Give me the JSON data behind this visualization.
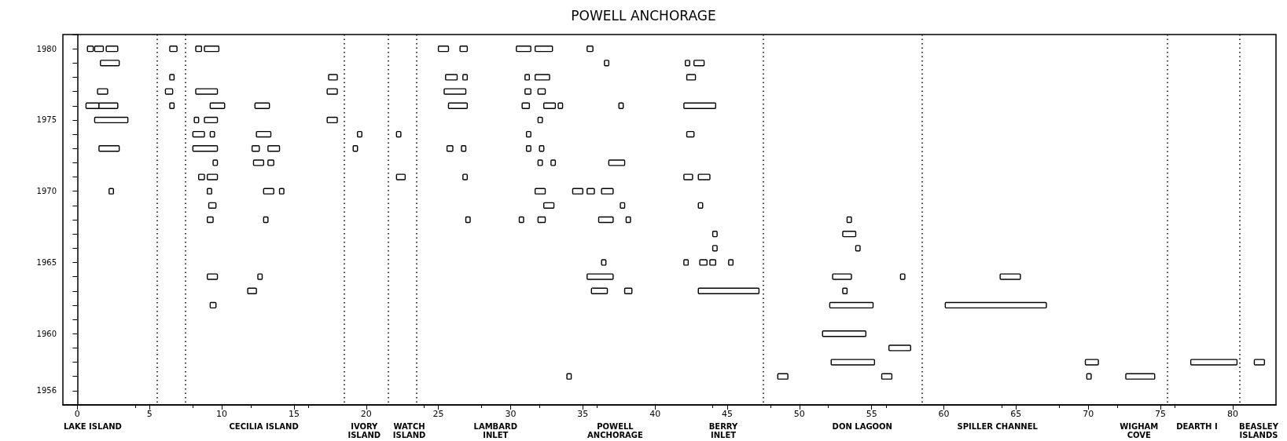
{
  "chart_data": {
    "type": "bar",
    "orientation": "horizontal",
    "title": "POWELL ANCHORAGE",
    "categories": [
      null,
      "1980",
      null,
      null,
      null,
      null,
      "1975",
      null,
      null,
      null,
      null,
      "1970",
      null,
      null,
      null,
      null,
      "1965",
      null,
      null,
      null,
      null,
      "1960",
      null,
      null,
      null,
      "1956",
      null
    ],
    "xlim": [
      -1,
      83
    ],
    "xticks": [
      0,
      5,
      10,
      15,
      20,
      25,
      30,
      35,
      40,
      45,
      50,
      55,
      60,
      65,
      70,
      75,
      80
    ],
    "series": [
      {
        "color": "#000000",
        "base": [
          null,
          0.7,
          1.6,
          6.4,
          1.4,
          0.6,
          1.2,
          8.0,
          1.5,
          9.4,
          8.4,
          2.2,
          9.1,
          9.0,
          44.0,
          44.0,
          36.3,
          9.0,
          11.8,
          9.2,
          null,
          51.6,
          56.2,
          52.2,
          33.9,
          null,
          null
        ],
        "values": [
          null,
          0.4,
          1.3,
          0.3,
          0.7,
          0.9,
          2.3,
          0.8,
          1.4,
          0.3,
          0.4,
          0.3,
          0.5,
          0.4,
          0.3,
          0.3,
          0.3,
          0.7,
          0.6,
          0.4,
          null,
          3.0,
          1.5,
          3.0,
          0.3,
          null,
          null
        ]
      },
      {
        "color": "#000000",
        "base": [
          null,
          1.2,
          36.5,
          17.4,
          6.1,
          1.5,
          8.1,
          9.2,
          8.0,
          12.2,
          9.0,
          9.0,
          32.3,
          12.9,
          53.0,
          53.9,
          42.0,
          12.5,
          35.6,
          52.1,
          null,
          null,
          null,
          69.8,
          48.5,
          null,
          null
        ],
        "values": [
          null,
          0.6,
          0.3,
          0.6,
          0.5,
          1.3,
          0.3,
          0.3,
          1.7,
          0.7,
          0.7,
          0.3,
          0.7,
          0.3,
          0.9,
          0.3,
          0.3,
          0.3,
          1.1,
          3.0,
          null,
          null,
          null,
          0.9,
          0.7,
          null,
          null
        ]
      },
      {
        "color": "#000000",
        "base": [
          null,
          2.0,
          42.1,
          25.5,
          8.2,
          6.4,
          8.8,
          12.4,
          12.1,
          13.2,
          22.1,
          12.9,
          37.6,
          26.9,
          null,
          null,
          43.1,
          35.3,
          37.9,
          60.1,
          null,
          null,
          null,
          77.1,
          55.7,
          null,
          null
        ],
        "values": [
          null,
          0.8,
          0.3,
          0.8,
          1.5,
          0.3,
          0.9,
          1.0,
          0.5,
          0.4,
          0.6,
          0.7,
          0.3,
          0.3,
          null,
          null,
          0.5,
          1.8,
          0.5,
          7.0,
          null,
          null,
          null,
          3.2,
          0.7,
          null,
          null
        ]
      },
      {
        "color": "#000000",
        "base": [
          null,
          6.4,
          42.7,
          26.7,
          17.3,
          9.2,
          17.3,
          19.4,
          13.2,
          31.9,
          26.7,
          14.0,
          43.0,
          30.6,
          null,
          null,
          43.8,
          52.3,
          43.0,
          null,
          null,
          null,
          null,
          81.5,
          69.9,
          null,
          null
        ],
        "values": [
          null,
          0.5,
          0.7,
          0.3,
          0.7,
          1.0,
          0.7,
          0.3,
          0.8,
          0.3,
          0.3,
          0.3,
          0.3,
          0.3,
          null,
          null,
          0.4,
          1.3,
          4.2,
          null,
          null,
          null,
          null,
          0.7,
          0.3,
          null,
          null
        ]
      },
      {
        "color": "#000000",
        "base": [
          null,
          8.2,
          null,
          31.0,
          25.4,
          12.3,
          31.9,
          22.1,
          19.1,
          32.8,
          42.0,
          31.7,
          null,
          31.9,
          null,
          null,
          45.1,
          57.0,
          53.0,
          null,
          null,
          null,
          null,
          null,
          72.6,
          null,
          null
        ],
        "values": [
          null,
          0.4,
          null,
          0.3,
          1.5,
          1.0,
          0.3,
          0.3,
          0.3,
          0.3,
          0.6,
          0.7,
          null,
          0.5,
          null,
          null,
          0.3,
          0.3,
          0.3,
          null,
          null,
          null,
          null,
          null,
          2.0,
          null,
          null
        ]
      },
      {
        "color": "#000000",
        "base": [
          null,
          8.8,
          null,
          31.7,
          31.0,
          25.7,
          null,
          31.1,
          25.6,
          36.8,
          43.0,
          34.3,
          null,
          36.1,
          null,
          null,
          null,
          63.9,
          null,
          null,
          null,
          null,
          null,
          null,
          null,
          null,
          null
        ],
        "values": [
          null,
          1.0,
          null,
          1.0,
          0.4,
          1.3,
          null,
          0.3,
          0.4,
          1.1,
          0.8,
          0.7,
          null,
          1.0,
          null,
          null,
          null,
          1.4,
          null,
          null,
          null,
          null,
          null,
          null,
          null,
          null,
          null
        ]
      },
      {
        "color": "#000000",
        "base": [
          null,
          25.0,
          null,
          42.2,
          31.9,
          30.8,
          null,
          42.2,
          26.6,
          null,
          null,
          35.3,
          null,
          38.0,
          null,
          null,
          null,
          null,
          null,
          null,
          null,
          null,
          null,
          null,
          null,
          null,
          null
        ],
        "values": [
          null,
          0.7,
          null,
          0.6,
          0.5,
          0.5,
          null,
          0.5,
          0.3,
          null,
          null,
          0.5,
          null,
          0.3,
          null,
          null,
          null,
          null,
          null,
          null,
          null,
          null,
          null,
          null,
          null,
          null,
          null
        ]
      },
      {
        "color": "#000000",
        "base": [
          null,
          26.5,
          null,
          null,
          null,
          32.3,
          null,
          null,
          31.1,
          null,
          null,
          36.3,
          null,
          53.3,
          null,
          null,
          null,
          null,
          null,
          null,
          null,
          null,
          null,
          null,
          null,
          null,
          null
        ],
        "values": [
          null,
          0.5,
          null,
          null,
          null,
          0.8,
          null,
          null,
          0.3,
          null,
          null,
          0.8,
          null,
          0.3,
          null,
          null,
          null,
          null,
          null,
          null,
          null,
          null,
          null,
          null,
          null,
          null,
          null
        ]
      },
      {
        "color": "#000000",
        "base": [
          null,
          30.4,
          null,
          null,
          null,
          33.3,
          null,
          null,
          32.0,
          null,
          null,
          null,
          null,
          null,
          null,
          null,
          null,
          null,
          null,
          null,
          null,
          null,
          null,
          null,
          null,
          null,
          null
        ],
        "values": [
          null,
          1.0,
          null,
          null,
          null,
          0.3,
          null,
          null,
          0.3,
          null,
          null,
          null,
          null,
          null,
          null,
          null,
          null,
          null,
          null,
          null,
          null,
          null,
          null,
          null,
          null,
          null,
          null
        ]
      },
      {
        "color": "#000000",
        "base": [
          null,
          31.7,
          null,
          null,
          null,
          37.5,
          null,
          null,
          null,
          null,
          null,
          null,
          null,
          null,
          null,
          null,
          null,
          null,
          null,
          null,
          null,
          null,
          null,
          null,
          null,
          null,
          null
        ],
        "values": [
          null,
          1.2,
          null,
          null,
          null,
          0.3,
          null,
          null,
          null,
          null,
          null,
          null,
          null,
          null,
          null,
          null,
          null,
          null,
          null,
          null,
          null,
          null,
          null,
          null,
          null,
          null,
          null
        ]
      },
      {
        "color": "#000000",
        "base": [
          null,
          35.3,
          null,
          null,
          null,
          42.0,
          null,
          null,
          null,
          null,
          null,
          null,
          null,
          null,
          null,
          null,
          null,
          null,
          null,
          null,
          null,
          null,
          null,
          null,
          null,
          null,
          null
        ],
        "values": [
          null,
          0.4,
          null,
          null,
          null,
          2.2,
          null,
          null,
          null,
          null,
          null,
          null,
          null,
          null,
          null,
          null,
          null,
          null,
          null,
          null,
          null,
          null,
          null,
          null,
          null,
          null,
          null
        ]
      }
    ],
    "ref_lines": [
      {
        "axis": "x",
        "value": 5.5,
        "color": "#000000",
        "line_style": "dotted"
      },
      {
        "axis": "x",
        "value": 7.5,
        "color": "#000000",
        "line_style": "dotted"
      },
      {
        "axis": "x",
        "value": 18.5,
        "color": "#000000",
        "line_style": "dotted"
      },
      {
        "axis": "x",
        "value": 21.5,
        "color": "#000000",
        "line_style": "dotted"
      },
      {
        "axis": "x",
        "value": 23.5,
        "color": "#000000",
        "line_style": "dotted"
      },
      {
        "axis": "x",
        "value": 47.5,
        "color": "#000000",
        "line_style": "dotted"
      },
      {
        "axis": "x",
        "value": 58.5,
        "color": "#000000",
        "line_style": "dotted"
      },
      {
        "axis": "x",
        "value": 75.5,
        "color": "#000000",
        "line_style": "dotted"
      },
      {
        "axis": "x",
        "value": 80.5,
        "color": "#000000",
        "line_style": "dotted"
      }
    ],
    "annotations": [
      "LAKE ISLAND",
      "CECILIA ISLAND",
      "IVORY\nISLAND",
      "WATCH\nISLAND",
      "LAMBARD\nINLET",
      "POWELL\nANCHORAGE",
      "BERRY\nINLET",
      "DON LAGOON",
      "SPILLER CHANNEL",
      "WIGHAM\nCOVE",
      "DEARTH I",
      "BEASLEY\nISLANDS"
    ]
  }
}
